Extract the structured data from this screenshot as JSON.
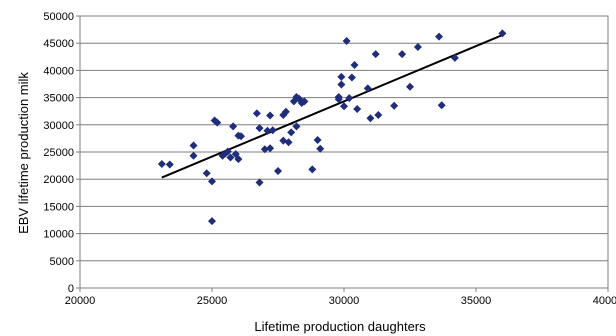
{
  "chart_data": {
    "type": "scatter",
    "title": "",
    "xlabel": "Lifetime production daughters",
    "ylabel": "EBV lifetime production milk",
    "xlim": [
      20000,
      40000
    ],
    "ylim": [
      0,
      50000
    ],
    "x_ticks": [
      20000,
      25000,
      30000,
      35000,
      40000
    ],
    "y_ticks": [
      0,
      5000,
      10000,
      15000,
      20000,
      25000,
      30000,
      35000,
      40000,
      45000,
      50000
    ],
    "grid": "horizontal",
    "legend": "none",
    "marker": "diamond",
    "colors": {
      "points": "#1f2d7a",
      "trendline": "#000000",
      "grid": "#7f7f7f",
      "axis": "#7f7f7f"
    },
    "series": [
      {
        "points": [
          [
            23100,
            22800
          ],
          [
            23400,
            22700
          ],
          [
            24300,
            26200
          ],
          [
            24300,
            24300
          ],
          [
            24800,
            21100
          ],
          [
            25000,
            19600
          ],
          [
            25000,
            12300
          ],
          [
            25100,
            30800
          ],
          [
            25200,
            30400
          ],
          [
            25400,
            24300
          ],
          [
            25500,
            24700
          ],
          [
            25600,
            25100
          ],
          [
            25700,
            24000
          ],
          [
            25800,
            29700
          ],
          [
            25900,
            24600
          ],
          [
            26000,
            28000
          ],
          [
            26000,
            23700
          ],
          [
            26100,
            27900
          ],
          [
            26700,
            32100
          ],
          [
            26800,
            29400
          ],
          [
            26800,
            19400
          ],
          [
            27000,
            25500
          ],
          [
            27100,
            28900
          ],
          [
            27200,
            25700
          ],
          [
            27200,
            31700
          ],
          [
            27300,
            29000
          ],
          [
            27500,
            21500
          ],
          [
            27700,
            27100
          ],
          [
            27700,
            31800
          ],
          [
            27800,
            32400
          ],
          [
            27900,
            26800
          ],
          [
            28000,
            28600
          ],
          [
            28100,
            34300
          ],
          [
            28200,
            29700
          ],
          [
            28200,
            35100
          ],
          [
            28300,
            34800
          ],
          [
            28400,
            34000
          ],
          [
            28500,
            34300
          ],
          [
            28800,
            21800
          ],
          [
            29000,
            27200
          ],
          [
            29100,
            25600
          ],
          [
            29800,
            34700
          ],
          [
            29800,
            35100
          ],
          [
            29900,
            37400
          ],
          [
            29900,
            38800
          ],
          [
            30000,
            33400
          ],
          [
            30100,
            45400
          ],
          [
            30200,
            34900
          ],
          [
            30300,
            38700
          ],
          [
            30400,
            41000
          ],
          [
            30500,
            32900
          ],
          [
            30900,
            36700
          ],
          [
            31000,
            31200
          ],
          [
            31200,
            43000
          ],
          [
            31300,
            31800
          ],
          [
            31900,
            33500
          ],
          [
            32200,
            43000
          ],
          [
            32500,
            37000
          ],
          [
            32800,
            44300
          ],
          [
            33600,
            46200
          ],
          [
            33700,
            33600
          ],
          [
            34200,
            42300
          ],
          [
            36000,
            46800
          ]
        ]
      }
    ],
    "trendline": {
      "x": [
        23100,
        36000
      ],
      "y": [
        20300,
        46500
      ]
    }
  }
}
